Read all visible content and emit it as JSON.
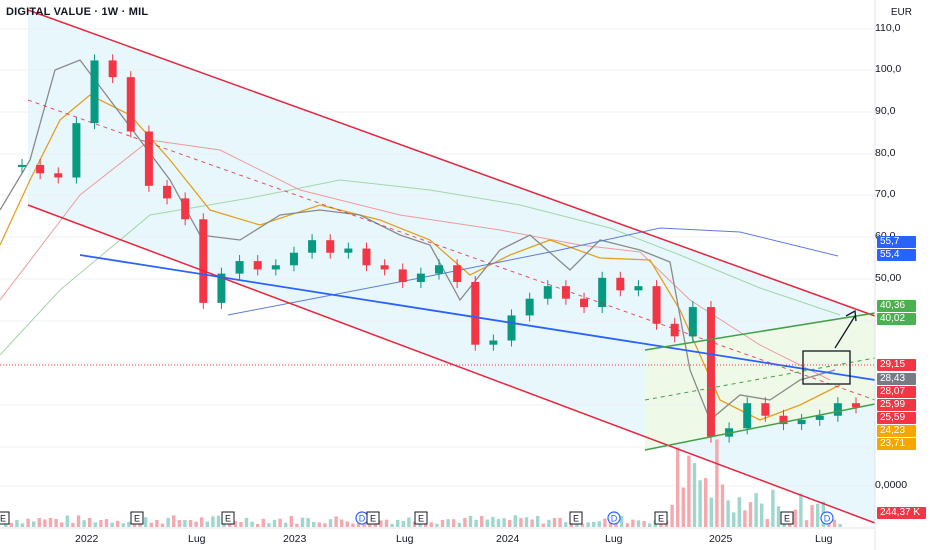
{
  "title": "DIGITAL VALUE · 1W · MIL",
  "currency": "EUR",
  "price_axis": {
    "ticks": [
      "110,0",
      "100,0",
      "90,0",
      "80,0",
      "70,0",
      "60,0",
      "50,00",
      "0,0000"
    ]
  },
  "time_axis": {
    "ticks": [
      "2022",
      "Lug",
      "2023",
      "Lug",
      "2024",
      "Lug",
      "2025",
      "Lug"
    ]
  },
  "price_tags": [
    {
      "text": "55,7",
      "color": "#2962ff"
    },
    {
      "text": "55,4",
      "color": "#2962ff"
    },
    {
      "text": "40,36",
      "color": "#4caf50"
    },
    {
      "text": "40,02",
      "color": "#4caf50"
    },
    {
      "text": "29,15",
      "color": "#f23645"
    },
    {
      "text": "28,43",
      "color": "#787b86"
    },
    {
      "text": "28,07",
      "color": "#f23645"
    },
    {
      "text": "25,99",
      "color": "#f23645"
    },
    {
      "text": "25,59",
      "color": "#f23645"
    },
    {
      "text": "24,23",
      "color": "#f7a600"
    },
    {
      "text": "23,71",
      "color": "#f7a600"
    },
    {
      "text": "244,37 K",
      "color": "#f23645"
    }
  ],
  "event_markers": [
    "E",
    "E",
    "E",
    "D",
    "E",
    "E",
    "E",
    "D",
    "E",
    "E",
    "D"
  ],
  "chart_data": {
    "type": "candlestick",
    "symbol": "DIGITAL VALUE",
    "interval": "1W",
    "exchange": "MIL",
    "currency": "EUR",
    "ylim": [
      0,
      115
    ],
    "last_price": 29.15,
    "close_series_by_date": [
      {
        "date": "2021-09",
        "close": 87
      },
      {
        "date": "2021-10",
        "close": 85
      },
      {
        "date": "2021-11",
        "close": 84
      },
      {
        "date": "2021-12",
        "close": 97
      },
      {
        "date": "2022-01",
        "close": 112
      },
      {
        "date": "2022-02",
        "close": 108
      },
      {
        "date": "2022-03",
        "close": 95
      },
      {
        "date": "2022-04",
        "close": 82
      },
      {
        "date": "2022-05",
        "close": 79
      },
      {
        "date": "2022-06",
        "close": 74
      },
      {
        "date": "2022-07",
        "close": 54
      },
      {
        "date": "2022-08",
        "close": 61
      },
      {
        "date": "2022-09",
        "close": 64
      },
      {
        "date": "2022-10",
        "close": 62
      },
      {
        "date": "2022-11",
        "close": 63
      },
      {
        "date": "2022-12",
        "close": 66
      },
      {
        "date": "2023-01",
        "close": 69
      },
      {
        "date": "2023-02",
        "close": 66
      },
      {
        "date": "2023-03",
        "close": 67
      },
      {
        "date": "2023-04",
        "close": 63
      },
      {
        "date": "2023-05",
        "close": 62
      },
      {
        "date": "2023-06",
        "close": 59
      },
      {
        "date": "2023-07",
        "close": 61
      },
      {
        "date": "2023-08",
        "close": 63
      },
      {
        "date": "2023-09",
        "close": 59
      },
      {
        "date": "2023-10",
        "close": 44
      },
      {
        "date": "2023-11",
        "close": 45
      },
      {
        "date": "2023-12",
        "close": 51
      },
      {
        "date": "2024-01",
        "close": 55
      },
      {
        "date": "2024-02",
        "close": 58
      },
      {
        "date": "2024-03",
        "close": 55
      },
      {
        "date": "2024-04",
        "close": 53
      },
      {
        "date": "2024-05",
        "close": 60
      },
      {
        "date": "2024-06",
        "close": 57
      },
      {
        "date": "2024-07",
        "close": 58
      },
      {
        "date": "2024-08",
        "close": 49
      },
      {
        "date": "2024-09",
        "close": 46
      },
      {
        "date": "2024-10",
        "close": 53
      },
      {
        "date": "2024-11",
        "close": 22
      },
      {
        "date": "2024-12",
        "close": 24
      },
      {
        "date": "2025-01",
        "close": 30
      },
      {
        "date": "2025-02",
        "close": 27
      },
      {
        "date": "2025-03",
        "close": 25
      },
      {
        "date": "2025-04",
        "close": 26
      },
      {
        "date": "2025-05",
        "close": 27
      },
      {
        "date": "2025-06",
        "close": 30
      },
      {
        "date": "2025-07",
        "close": 29
      }
    ],
    "indicator_levels": {
      "moving_average_blue": [
        55.7,
        55.4
      ],
      "moving_average_green": [
        40.36,
        40.02
      ],
      "moving_average_orange": [
        24.23,
        23.71
      ],
      "last_volume": "244,37 K"
    },
    "annotations": [
      "descending channel",
      "rising channel",
      "breakout arrow",
      "consolidation box"
    ]
  }
}
